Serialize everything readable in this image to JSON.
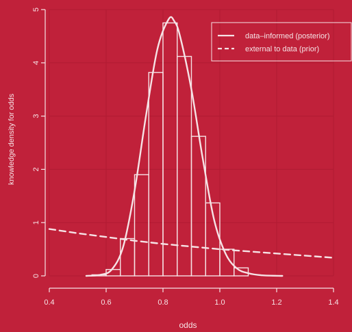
{
  "colors": {
    "background": "#c0213a",
    "foreground": "#f6e3e6",
    "grid": "#b11b33"
  },
  "chart_data": {
    "type": "bar",
    "xlabel": "odds",
    "ylabel": "knowledge density for odds",
    "xlim": [
      0.4,
      1.4
    ],
    "ylim": [
      0,
      5
    ],
    "x_ticks": [
      "0.4",
      "0.6",
      "0.8",
      "1.0",
      "1.2",
      "1.4"
    ],
    "y_ticks": [
      "0",
      "1",
      "2",
      "3",
      "4",
      "5"
    ],
    "grid": true,
    "legend_position": "top-right",
    "legend": [
      {
        "label": "data–informed (posterior)",
        "line_style": "solid"
      },
      {
        "label": "external to data (prior)",
        "line_style": "dashed"
      }
    ],
    "histogram": {
      "bin_edges": [
        0.55,
        0.6,
        0.65,
        0.7,
        0.75,
        0.8,
        0.85,
        0.9,
        0.95,
        1.0,
        1.05,
        1.1
      ],
      "heights": [
        0.02,
        0.12,
        0.7,
        1.9,
        3.82,
        4.75,
        4.12,
        2.62,
        1.37,
        0.5,
        0.15
      ]
    },
    "series": [
      {
        "name": "data–informed (posterior)",
        "line_style": "solid",
        "x": [
          0.53,
          0.58,
          0.62,
          0.66,
          0.7,
          0.74,
          0.78,
          0.82,
          0.84,
          0.86,
          0.9,
          0.94,
          0.98,
          1.02,
          1.06,
          1.1,
          1.15,
          1.22
        ],
        "y": [
          0.0,
          0.02,
          0.12,
          0.55,
          1.6,
          3.0,
          4.25,
          4.82,
          4.78,
          4.5,
          3.5,
          2.2,
          1.05,
          0.42,
          0.14,
          0.05,
          0.01,
          0.0
        ]
      },
      {
        "name": "external to data (prior)",
        "line_style": "dashed",
        "x": [
          0.4,
          0.5,
          0.6,
          0.7,
          0.8,
          0.9,
          1.0,
          1.1,
          1.2,
          1.3,
          1.4
        ],
        "y": [
          0.88,
          0.8,
          0.73,
          0.66,
          0.6,
          0.55,
          0.5,
          0.46,
          0.42,
          0.38,
          0.34
        ]
      }
    ]
  }
}
